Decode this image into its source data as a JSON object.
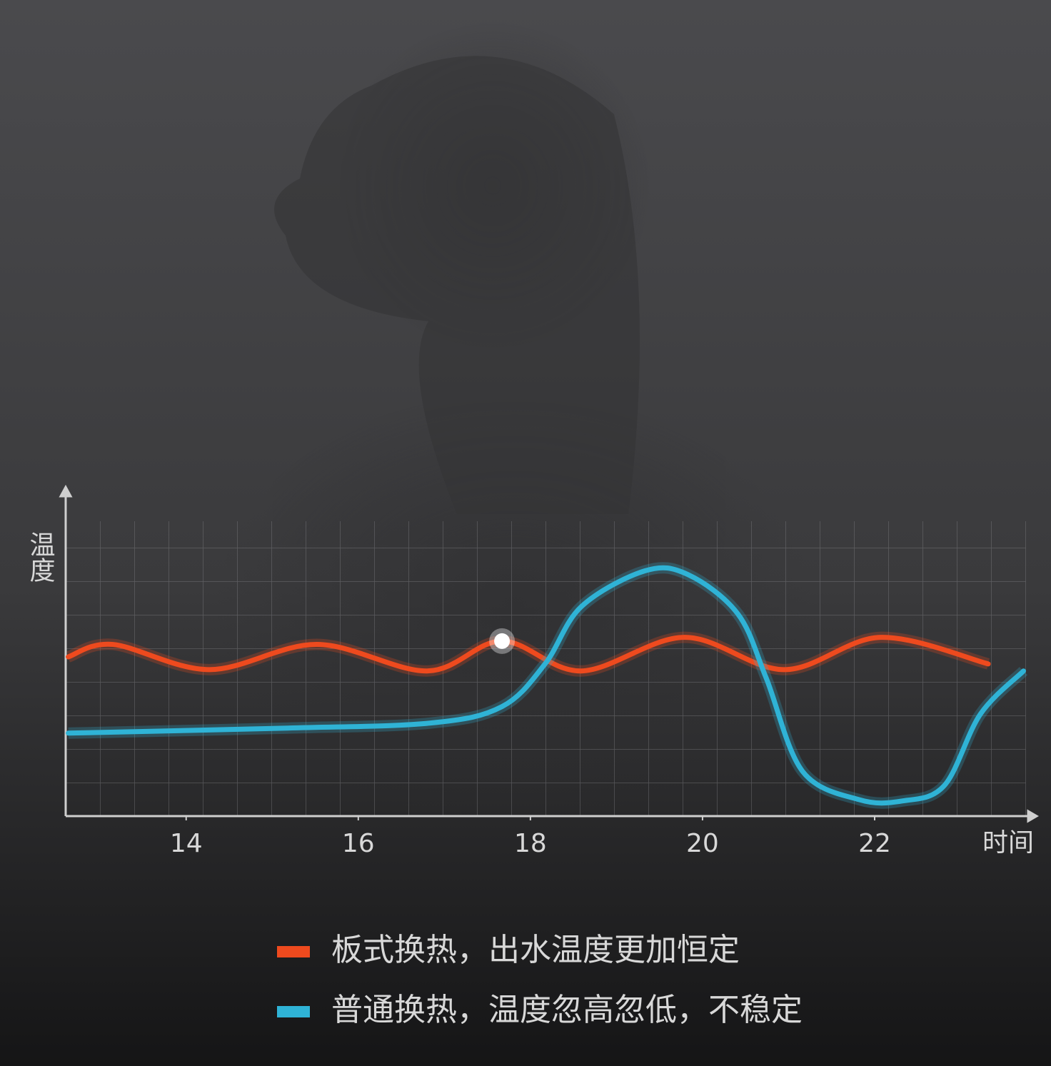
{
  "chart_data": {
    "type": "line",
    "x_label": "时间",
    "y_label": "温度",
    "xlim": [
      12.6,
      23.9
    ],
    "ylim": [
      0,
      9.5
    ],
    "xticks": [
      14,
      16,
      18,
      20,
      22
    ],
    "series": [
      {
        "name": "板式换热，出水温度更加恒定",
        "color": "#ee4a1e",
        "x": [
          12.63,
          13.15,
          14.27,
          15.52,
          16.8,
          17.67,
          18.59,
          19.79,
          20.95,
          22.07,
          23.32
        ],
        "values": [
          4.74,
          5.11,
          4.36,
          5.11,
          4.32,
          5.21,
          4.32,
          5.32,
          4.36,
          5.32,
          4.53
        ]
      },
      {
        "name": "普通换热，温度忽高忽低，不稳定",
        "color": "#2fb3d6",
        "x": [
          12.63,
          15.18,
          16.84,
          17.67,
          18.17,
          18.59,
          19.33,
          19.83,
          20.41,
          20.74,
          21.16,
          21.82,
          22.32,
          22.81,
          23.23,
          23.73
        ],
        "values": [
          2.47,
          2.62,
          2.77,
          3.26,
          4.53,
          6.23,
          7.3,
          7.19,
          6.02,
          4.11,
          1.34,
          0.49,
          0.45,
          0.91,
          3.04,
          4.32
        ]
      }
    ]
  }
}
